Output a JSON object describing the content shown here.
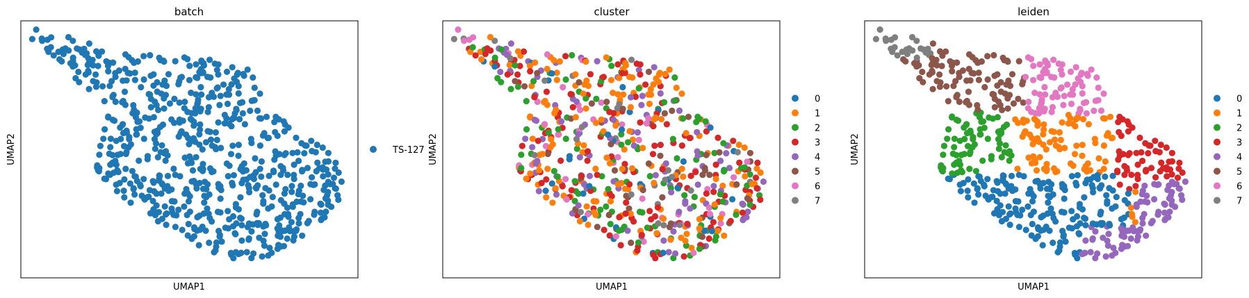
{
  "chart_data": [
    {
      "type": "scatter",
      "title": "batch",
      "xlabel": "UMAP1",
      "ylabel": "UMAP2",
      "color_by": "batch",
      "legend_position": "right",
      "legend": [
        {
          "label": "TS-127",
          "color": "#1f77b4"
        }
      ]
    },
    {
      "type": "scatter",
      "title": "cluster",
      "xlabel": "UMAP1",
      "ylabel": "UMAP2",
      "color_by": "cluster",
      "legend_position": "right",
      "legend": [
        {
          "label": "0",
          "color": "#1f77b4"
        },
        {
          "label": "1",
          "color": "#ff7f0e"
        },
        {
          "label": "2",
          "color": "#2ca02c"
        },
        {
          "label": "3",
          "color": "#d62728"
        },
        {
          "label": "4",
          "color": "#9467bd"
        },
        {
          "label": "5",
          "color": "#8c564b"
        },
        {
          "label": "6",
          "color": "#e377c2"
        },
        {
          "label": "7",
          "color": "#7f7f7f"
        }
      ]
    },
    {
      "type": "scatter",
      "title": "leiden",
      "xlabel": "UMAP1",
      "ylabel": "UMAP2",
      "color_by": "leiden",
      "legend_position": "right",
      "legend": [
        {
          "label": "0",
          "color": "#1f77b4"
        },
        {
          "label": "1",
          "color": "#ff7f0e"
        },
        {
          "label": "2",
          "color": "#2ca02c"
        },
        {
          "label": "3",
          "color": "#d62728"
        },
        {
          "label": "4",
          "color": "#9467bd"
        },
        {
          "label": "5",
          "color": "#8c564b"
        },
        {
          "label": "6",
          "color": "#e377c2"
        },
        {
          "label": "7",
          "color": "#7f7f7f"
        }
      ]
    }
  ]
}
